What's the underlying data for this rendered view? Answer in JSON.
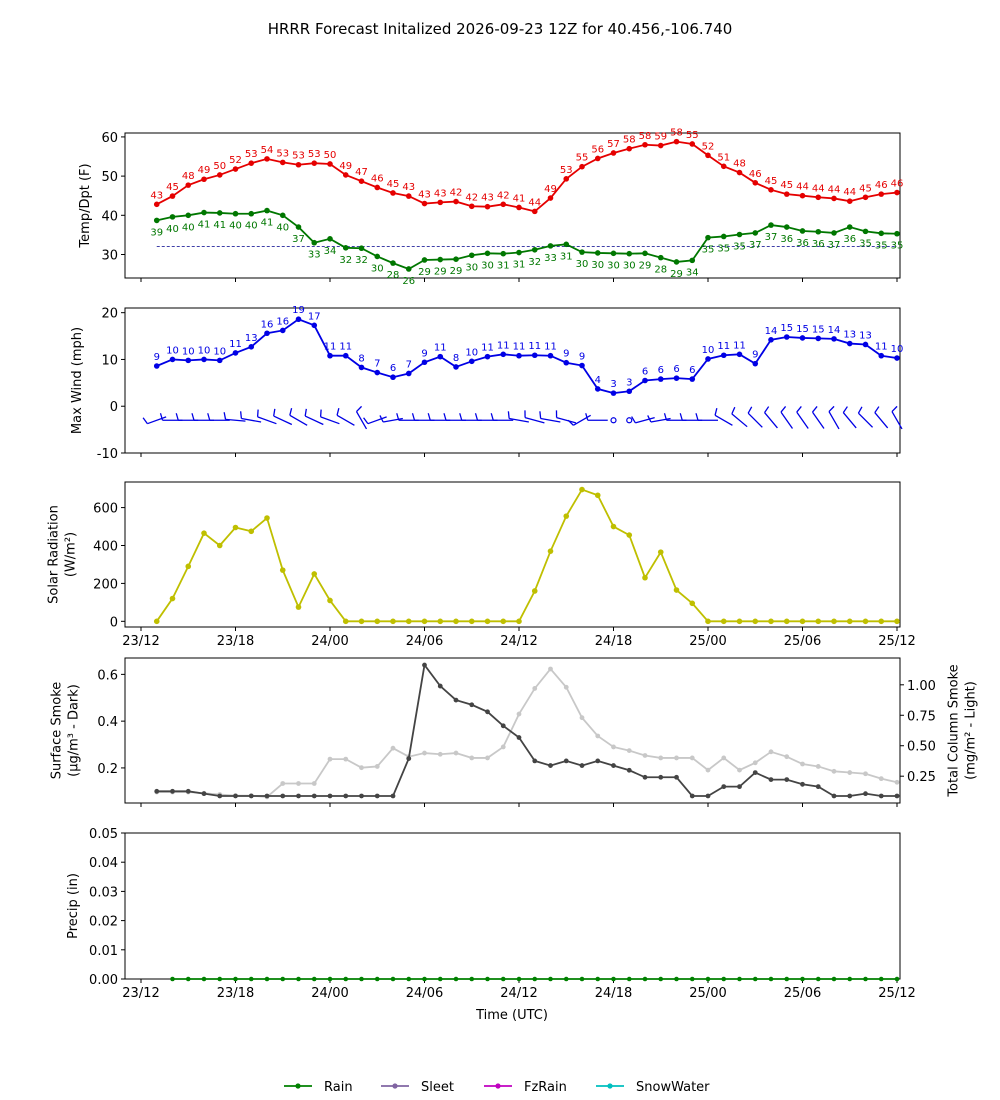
{
  "title": "HRRR Forecast Initalized 2026-09-23 12Z for 40.456,-106.740",
  "x_axis": {
    "label": "Time (UTC)",
    "ticks": [
      {
        "h": 0,
        "label": "23/12"
      },
      {
        "h": 6,
        "label": "23/18"
      },
      {
        "h": 12,
        "label": "24/00"
      },
      {
        "h": 18,
        "label": "24/06"
      },
      {
        "h": 24,
        "label": "24/12"
      },
      {
        "h": 30,
        "label": "24/18"
      },
      {
        "h": 36,
        "label": "25/00"
      },
      {
        "h": 42,
        "label": "25/06"
      },
      {
        "h": 48,
        "label": "25/12"
      }
    ]
  },
  "legend": [
    {
      "label": "Rain",
      "color": "#008000"
    },
    {
      "label": "Sleet",
      "color": "#8064a2"
    },
    {
      "label": "FzRain",
      "color": "#c000c0"
    },
    {
      "label": "SnowWater",
      "color": "#00bfbf"
    }
  ],
  "chart_data": [
    {
      "type": "line",
      "panel": "temperature",
      "ylabel": "Temp/Dpt (F)",
      "ylim": [
        24,
        61
      ],
      "yticks": [
        30,
        40,
        50,
        60
      ],
      "x_hours": [
        1,
        2,
        3,
        4,
        5,
        6,
        7,
        8,
        9,
        10,
        11,
        12,
        13,
        14,
        15,
        16,
        17,
        18,
        19,
        20,
        21,
        22,
        23,
        24,
        25,
        26,
        27,
        28,
        29,
        30,
        31,
        32,
        33,
        34,
        35,
        36,
        37,
        38,
        39,
        40,
        41,
        42,
        43,
        44,
        45,
        46,
        47,
        48
      ],
      "series": [
        {
          "name": "Temp",
          "color": "#e50000",
          "values": [
            43,
            45,
            48,
            49,
            50,
            52,
            53,
            54,
            53,
            53,
            53,
            50,
            49,
            47,
            46,
            45,
            43,
            43,
            43,
            42,
            42,
            43,
            42,
            41,
            44,
            49,
            53,
            55,
            56,
            57,
            58,
            58,
            59,
            58,
            55,
            52,
            51,
            48,
            46,
            45,
            45,
            44,
            44,
            44,
            44,
            45,
            46,
            46
          ],
          "plot_values": [
            42.8,
            44.9,
            47.7,
            49.2,
            50.3,
            51.8,
            53.3,
            54.4,
            53.5,
            52.9,
            53.3,
            53.1,
            50.3,
            48.7,
            47.1,
            45.7,
            44.9,
            43.0,
            43.3,
            43.5,
            42.3,
            42.2,
            42.8,
            42.0,
            41.0,
            44.4,
            49.3,
            52.4,
            54.5,
            55.9,
            57.0,
            58.0,
            57.8,
            58.8,
            58.2,
            55.3,
            52.5,
            50.9,
            48.3,
            46.5,
            45.4,
            45.0,
            44.6,
            44.3,
            43.6,
            44.6,
            45.4,
            45.8
          ]
        },
        {
          "name": "Dewpoint",
          "color": "#007700",
          "values": [
            39,
            40,
            40,
            41,
            41,
            40,
            40,
            41,
            40,
            37,
            33,
            34,
            32,
            32,
            30,
            28,
            26,
            29,
            29,
            29,
            30,
            30,
            31,
            31,
            32,
            33,
            31,
            30,
            30,
            30,
            30,
            29,
            28,
            29,
            34,
            35,
            35,
            35,
            37,
            37,
            36,
            36,
            36,
            37,
            36,
            35,
            35,
            35
          ],
          "plot_values": [
            38.7,
            39.6,
            40.0,
            40.7,
            40.6,
            40.4,
            40.4,
            41.2,
            40.0,
            37.0,
            33.0,
            34.0,
            31.7,
            31.6,
            29.5,
            27.8,
            26.3,
            28.6,
            28.7,
            28.8,
            29.8,
            30.3,
            30.2,
            30.5,
            31.2,
            32.2,
            32.6,
            30.6,
            30.4,
            30.3,
            30.2,
            30.3,
            29.2,
            28.1,
            28.5,
            34.3,
            34.6,
            35.1,
            35.5,
            37.5,
            37.0,
            36.0,
            35.8,
            35.5,
            37.0,
            35.9,
            35.4,
            35.3
          ]
        }
      ],
      "reference_line": 32
    },
    {
      "type": "line",
      "panel": "wind",
      "ylabel": "Max Wind (mph)",
      "ylim": [
        -10,
        21
      ],
      "yticks": [
        -10,
        0,
        10,
        20
      ],
      "x_hours": [
        1,
        2,
        3,
        4,
        5,
        6,
        7,
        8,
        9,
        10,
        11,
        12,
        13,
        14,
        15,
        16,
        17,
        18,
        19,
        20,
        21,
        22,
        23,
        24,
        25,
        26,
        27,
        28,
        29,
        30,
        31,
        32,
        33,
        34,
        35,
        36,
        37,
        38,
        39,
        40,
        41,
        42,
        43,
        44,
        45,
        46,
        47,
        48
      ],
      "series": [
        {
          "name": "Max Wind",
          "color": "#0000e5",
          "values": [
            9,
            10,
            10,
            10,
            10,
            11,
            13,
            16,
            16,
            19,
            17,
            11,
            11,
            8,
            7,
            6,
            7,
            9,
            11,
            8,
            10,
            11,
            11,
            11,
            11,
            11,
            9,
            9,
            4,
            3,
            3,
            6,
            6,
            6,
            6,
            10,
            11,
            11,
            9,
            14,
            15,
            15,
            15,
            14,
            13,
            13,
            11,
            10
          ],
          "plot_values": [
            8.6,
            10.0,
            9.8,
            10.0,
            9.8,
            11.4,
            12.7,
            15.6,
            16.2,
            18.6,
            17.3,
            10.8,
            10.8,
            8.3,
            7.2,
            6.2,
            7.0,
            9.4,
            10.6,
            8.4,
            9.6,
            10.6,
            11.1,
            10.8,
            10.9,
            10.8,
            9.3,
            8.7,
            3.7,
            2.8,
            3.2,
            5.5,
            5.8,
            6.0,
            5.8,
            10.1,
            10.9,
            11.1,
            9.1,
            14.2,
            14.8,
            14.6,
            14.5,
            14.4,
            13.4,
            13.2,
            10.8,
            10.3
          ]
        }
      ]
    },
    {
      "type": "line",
      "panel": "solar",
      "ylabel": "Solar Radiation (W/m²)",
      "ylim": [
        -30,
        735
      ],
      "yticks": [
        0,
        200,
        400,
        600
      ],
      "x_hours": [
        1,
        2,
        3,
        4,
        5,
        6,
        7,
        8,
        9,
        10,
        11,
        12,
        13,
        14,
        15,
        16,
        17,
        18,
        19,
        20,
        21,
        22,
        23,
        24,
        25,
        26,
        27,
        28,
        29,
        30,
        31,
        32,
        33,
        34,
        35,
        36,
        37,
        38,
        39,
        40,
        41,
        42,
        43,
        44,
        45,
        46,
        47,
        48
      ],
      "series": [
        {
          "name": "Solar Radiation",
          "color": "#bfbf00",
          "values": [
            0,
            120,
            290,
            465,
            400,
            495,
            475,
            545,
            270,
            75,
            250,
            110,
            0,
            0,
            0,
            0,
            0,
            0,
            0,
            0,
            0,
            0,
            0,
            0,
            160,
            370,
            555,
            695,
            665,
            500,
            455,
            230,
            365,
            165,
            95,
            0,
            0,
            0,
            0,
            0,
            0,
            0,
            0,
            0,
            0,
            0,
            0,
            0
          ]
        }
      ]
    },
    {
      "type": "line",
      "panel": "smoke",
      "ylabel": "Surface Smoke (μg/m³ - Dark)",
      "y2label": "Total Column Smoke (mg/m² - Light)",
      "ylim": [
        0.05,
        0.67
      ],
      "y2lim": [
        0.03,
        1.22
      ],
      "yticks": [
        0.2,
        0.4,
        0.6
      ],
      "y2ticks": [
        0.25,
        0.5,
        0.75,
        1.0
      ],
      "x_hours": [
        1,
        2,
        3,
        4,
        5,
        6,
        7,
        8,
        9,
        10,
        11,
        12,
        13,
        14,
        15,
        16,
        17,
        18,
        19,
        20,
        21,
        22,
        23,
        24,
        25,
        26,
        27,
        28,
        29,
        30,
        31,
        32,
        33,
        34,
        35,
        36,
        37,
        38,
        39,
        40,
        41,
        42,
        43,
        44,
        45,
        46,
        47,
        48
      ],
      "series": [
        {
          "name": "Surface Smoke",
          "axis": "left",
          "color": "#444444",
          "values": [
            0.1,
            0.1,
            0.1,
            0.09,
            0.08,
            0.08,
            0.08,
            0.08,
            0.08,
            0.08,
            0.08,
            0.08,
            0.08,
            0.08,
            0.08,
            0.08,
            0.24,
            0.64,
            0.55,
            0.49,
            0.47,
            0.44,
            0.38,
            0.33,
            0.23,
            0.21,
            0.23,
            0.21,
            0.23,
            0.21,
            0.19,
            0.16,
            0.16,
            0.16,
            0.08,
            0.08,
            0.12,
            0.12,
            0.18,
            0.15,
            0.15,
            0.13,
            0.12,
            0.08,
            0.08,
            0.09,
            0.08,
            0.08
          ]
        },
        {
          "name": "Total Column Smoke",
          "axis": "right",
          "color": "#c8c8c8",
          "values": [
            0.12,
            0.12,
            0.12,
            0.11,
            0.1,
            0.09,
            0.09,
            0.08,
            0.19,
            0.19,
            0.19,
            0.39,
            0.39,
            0.32,
            0.33,
            0.48,
            0.41,
            0.44,
            0.43,
            0.44,
            0.4,
            0.4,
            0.49,
            0.76,
            0.97,
            1.13,
            0.98,
            0.73,
            0.58,
            0.49,
            0.46,
            0.42,
            0.4,
            0.4,
            0.4,
            0.3,
            0.4,
            0.3,
            0.36,
            0.45,
            0.41,
            0.35,
            0.33,
            0.29,
            0.28,
            0.27,
            0.23,
            0.2
          ]
        }
      ]
    },
    {
      "type": "line",
      "panel": "precip",
      "ylabel": "Precip (in)",
      "ylim": [
        0,
        0.05
      ],
      "yticks": [
        "0.00",
        "0.01",
        "0.02",
        "0.03",
        "0.04",
        "0.05"
      ],
      "x_hours": [
        2,
        3,
        4,
        5,
        6,
        7,
        8,
        9,
        10,
        11,
        12,
        13,
        14,
        15,
        16,
        17,
        18,
        19,
        20,
        21,
        22,
        23,
        24,
        25,
        26,
        27,
        28,
        29,
        30,
        31,
        32,
        33,
        34,
        35,
        36,
        37,
        38,
        39,
        40,
        41,
        42,
        43,
        44,
        45,
        46,
        47,
        48
      ],
      "series": [
        {
          "name": "Rain",
          "color": "#008000",
          "values": [
            0,
            0,
            0,
            0,
            0,
            0,
            0,
            0,
            0,
            0,
            0,
            0,
            0,
            0,
            0,
            0,
            0,
            0,
            0,
            0,
            0,
            0,
            0,
            0,
            0,
            0,
            0,
            0,
            0,
            0,
            0,
            0,
            0,
            0,
            0,
            0,
            0,
            0,
            0,
            0,
            0,
            0,
            0,
            0,
            0,
            0,
            0
          ]
        }
      ]
    }
  ]
}
